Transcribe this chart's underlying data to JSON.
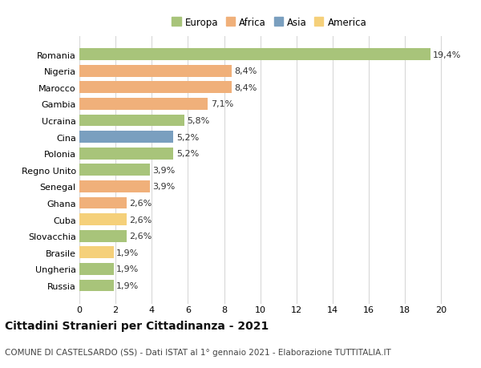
{
  "categories": [
    "Romania",
    "Nigeria",
    "Marocco",
    "Gambia",
    "Ucraina",
    "Cina",
    "Polonia",
    "Regno Unito",
    "Senegal",
    "Ghana",
    "Cuba",
    "Slovacchia",
    "Brasile",
    "Ungheria",
    "Russia"
  ],
  "values": [
    19.4,
    8.4,
    8.4,
    7.1,
    5.8,
    5.2,
    5.2,
    3.9,
    3.9,
    2.6,
    2.6,
    2.6,
    1.9,
    1.9,
    1.9
  ],
  "labels": [
    "19,4%",
    "8,4%",
    "8,4%",
    "7,1%",
    "5,8%",
    "5,2%",
    "5,2%",
    "3,9%",
    "3,9%",
    "2,6%",
    "2,6%",
    "2,6%",
    "1,9%",
    "1,9%",
    "1,9%"
  ],
  "colors": [
    "#a8c47a",
    "#f0b07a",
    "#f0b07a",
    "#f0b07a",
    "#a8c47a",
    "#7a9fbf",
    "#a8c47a",
    "#a8c47a",
    "#f0b07a",
    "#f0b07a",
    "#f5d07a",
    "#a8c47a",
    "#f5d07a",
    "#a8c47a",
    "#a8c47a"
  ],
  "legend": [
    {
      "label": "Europa",
      "color": "#a8c47a"
    },
    {
      "label": "Africa",
      "color": "#f0b07a"
    },
    {
      "label": "Asia",
      "color": "#7a9fbf"
    },
    {
      "label": "America",
      "color": "#f5d07a"
    }
  ],
  "xlim": [
    0,
    21
  ],
  "xticks": [
    0,
    2,
    4,
    6,
    8,
    10,
    12,
    14,
    16,
    18,
    20
  ],
  "title": "Cittadini Stranieri per Cittadinanza - 2021",
  "subtitle": "COMUNE DI CASTELSARDO (SS) - Dati ISTAT al 1° gennaio 2021 - Elaborazione TUTTITALIA.IT",
  "bar_height": 0.72,
  "background_color": "#ffffff",
  "grid_color": "#d8d8d8",
  "label_fontsize": 8,
  "ytick_fontsize": 8,
  "xtick_fontsize": 8,
  "title_fontsize": 10,
  "subtitle_fontsize": 7.5
}
